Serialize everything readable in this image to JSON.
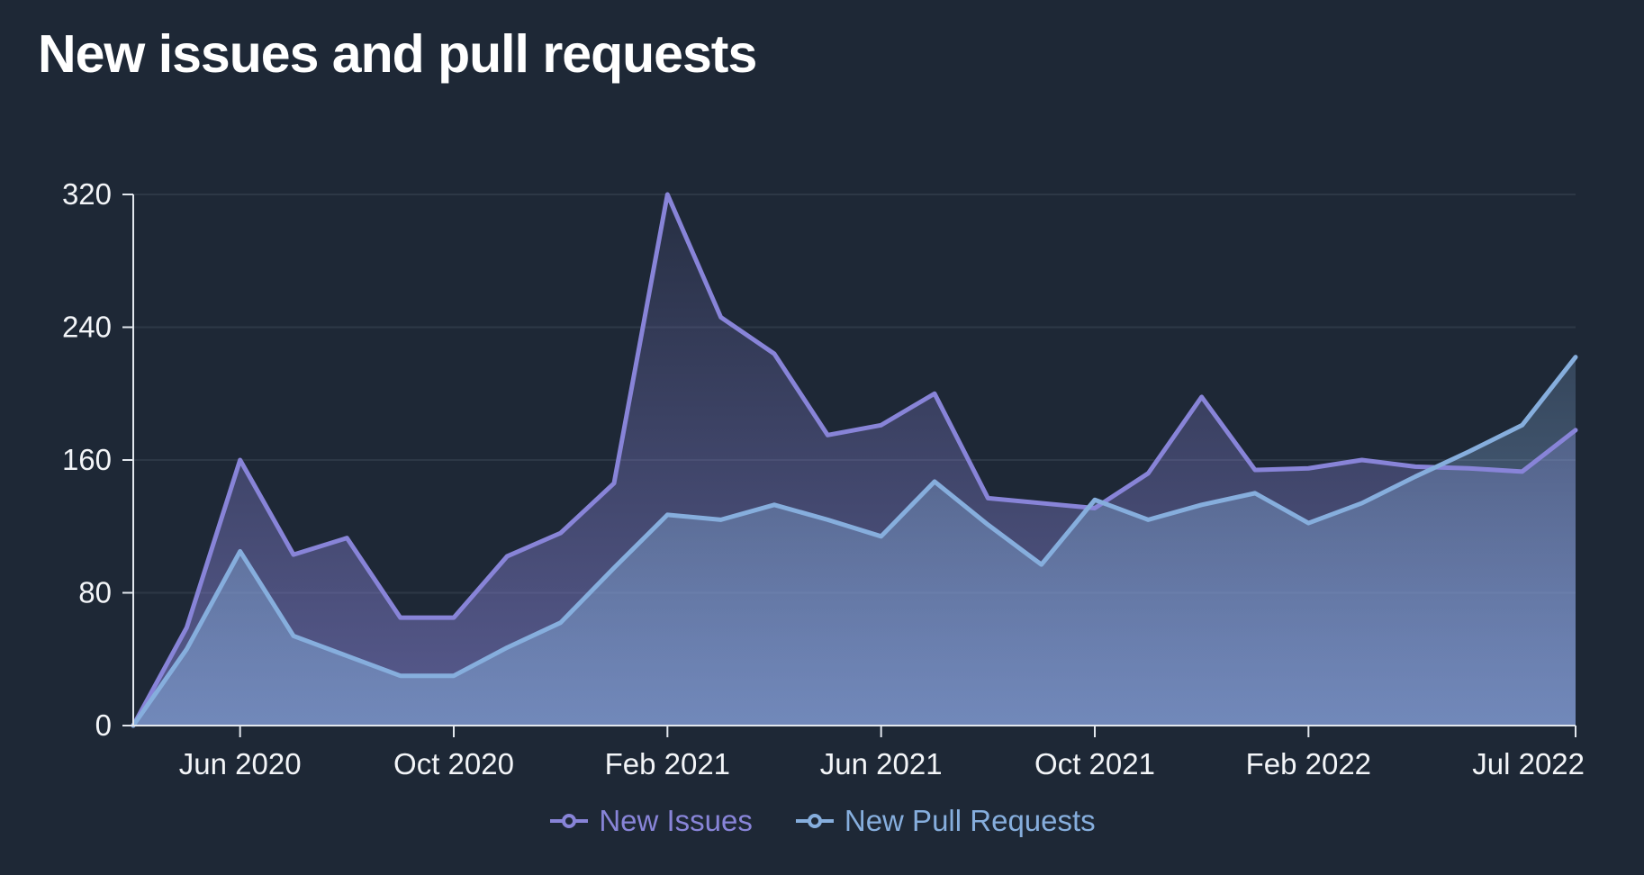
{
  "title": "New issues and pull requests",
  "colors": {
    "background": "#1e2836",
    "issues": "#8884d8",
    "pull_requests": "#86aedd",
    "axis": "#e2e7ee",
    "grid": "rgba(205,218,238,0.09)",
    "text": "#f3f5f8",
    "title_text": "#ffffff"
  },
  "legend": {
    "items": [
      {
        "label": "New Issues",
        "marker": "line-with-open-circle"
      },
      {
        "label": "New Pull Requests",
        "marker": "line-with-open-circle"
      }
    ]
  },
  "chart_data": {
    "type": "area",
    "title": "New issues and pull requests",
    "xlabel": "",
    "ylabel": "",
    "ylim": [
      0,
      320
    ],
    "y_ticks": [
      0,
      80,
      160,
      240,
      320
    ],
    "grid": "horizontal",
    "legend_position": "bottom",
    "x": [
      "Apr 2020",
      "May 2020",
      "Jun 2020",
      "Jul 2020",
      "Aug 2020",
      "Sep 2020",
      "Oct 2020",
      "Nov 2020",
      "Dec 2020",
      "Jan 2021",
      "Feb 2021",
      "Mar 2021",
      "Apr 2021",
      "May 2021",
      "Jun 2021",
      "Jul 2021",
      "Aug 2021",
      "Sep 2021",
      "Oct 2021",
      "Nov 2021",
      "Dec 2021",
      "Jan 2022",
      "Feb 2022",
      "Mar 2022",
      "Apr 2022",
      "May 2022",
      "Jun 2022",
      "Jul 2022"
    ],
    "x_tick_labels": [
      "Jun 2020",
      "Oct 2020",
      "Feb 2021",
      "Jun 2021",
      "Oct 2021",
      "Feb 2022",
      "Jul 2022"
    ],
    "x_tick_indices": [
      2,
      6,
      10,
      14,
      18,
      22,
      27
    ],
    "series": [
      {
        "name": "New Issues",
        "color": "#8884d8",
        "values": [
          0,
          59,
          160,
          103,
          113,
          65,
          65,
          102,
          116,
          146,
          320,
          246,
          224,
          175,
          181,
          200,
          137,
          134,
          131,
          152,
          198,
          154,
          155,
          160,
          156,
          155,
          153,
          178
        ]
      },
      {
        "name": "New Pull Requests",
        "color": "#86aedd",
        "values": [
          0,
          46,
          105,
          54,
          42,
          30,
          30,
          47,
          62,
          95,
          127,
          124,
          133,
          124,
          114,
          147,
          121,
          97,
          136,
          124,
          133,
          140,
          122,
          134,
          150,
          165,
          181,
          222
        ]
      }
    ]
  }
}
